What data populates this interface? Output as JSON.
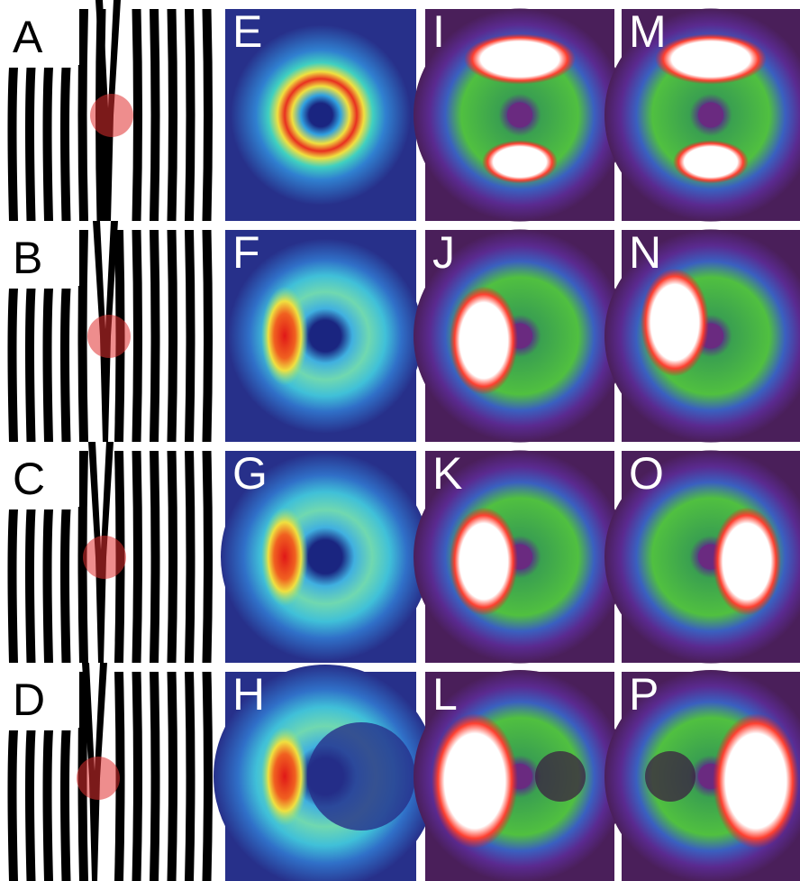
{
  "rows": [
    [
      "A",
      "E",
      "I",
      "M"
    ],
    [
      "B",
      "F",
      "J",
      "N"
    ],
    [
      "C",
      "G",
      "K",
      "O"
    ],
    [
      "D",
      "H",
      "L",
      "P"
    ]
  ]
}
